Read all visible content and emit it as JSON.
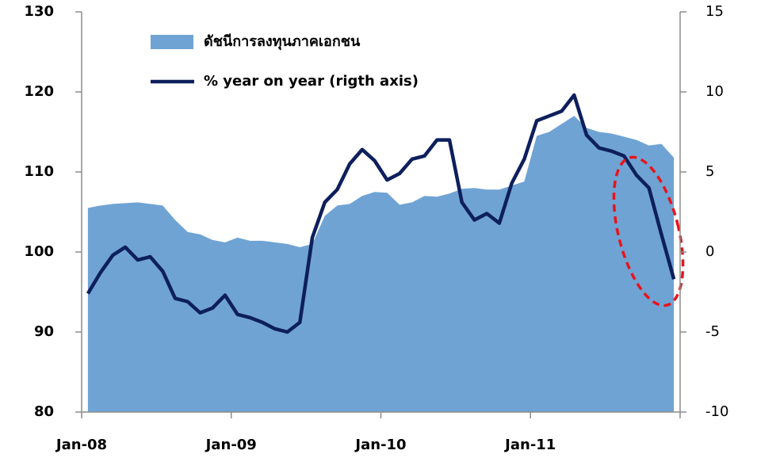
{
  "chart_data": {
    "type": "combo",
    "categories": [
      "Jan-08",
      null,
      null,
      null,
      null,
      null,
      null,
      null,
      null,
      null,
      null,
      null,
      "Jan-09",
      null,
      null,
      null,
      null,
      null,
      null,
      null,
      null,
      null,
      null,
      null,
      "Jan-10",
      null,
      null,
      null,
      null,
      null,
      null,
      null,
      null,
      null,
      null,
      null,
      "Jan-11",
      null,
      null,
      null,
      null,
      null,
      null,
      null,
      null,
      null,
      null,
      null
    ],
    "series": [
      {
        "name": "ดัชนีการลงทุนภาคเอกชน",
        "type": "area",
        "color": "#6fa3d4",
        "values": [
          105.5,
          105.8,
          106,
          106.1,
          106.2,
          106,
          105.8,
          104,
          102.5,
          102.2,
          101.5,
          101.2,
          101.8,
          101.4,
          101.4,
          101.2,
          101,
          100.6,
          101,
          104.5,
          105.8,
          106,
          107,
          107.5,
          107.4,
          105.9,
          106.2,
          107,
          106.9,
          107.3,
          107.9,
          108,
          107.8,
          107.8,
          108.3,
          108.8,
          114.5,
          115,
          116,
          117,
          115.5,
          115,
          114.8,
          114.4,
          114,
          113.3,
          113.5,
          111.8
        ]
      },
      {
        "name": "% year on year (rigth axis)",
        "type": "line",
        "axis": "y2",
        "color": "#0d1f5c",
        "values": [
          -2.6,
          -1.3,
          -0.2,
          0.3,
          -0.5,
          -0.3,
          -1.2,
          -2.9,
          -3.1,
          -3.8,
          -3.5,
          -2.7,
          -3.9,
          -4.1,
          -4.4,
          -4.8,
          -5.0,
          -4.4,
          0.9,
          3.1,
          3.9,
          5.5,
          6.4,
          5.7,
          4.5,
          4.9,
          5.8,
          6.0,
          7.0,
          7.0,
          3.1,
          2.0,
          2.4,
          1.8,
          4.3,
          5.8,
          8.2,
          8.5,
          8.8,
          9.8,
          7.3,
          6.5,
          6.3,
          6.0,
          4.8,
          4.0,
          1.1,
          -1.7
        ]
      }
    ],
    "ylim": [
      80,
      130
    ],
    "yticks": [
      80,
      90,
      100,
      110,
      120,
      130
    ],
    "y2lim": [
      -10,
      15
    ],
    "y2ticks": [
      -10,
      -5,
      0,
      5,
      10,
      15
    ],
    "legend": "top-left"
  }
}
